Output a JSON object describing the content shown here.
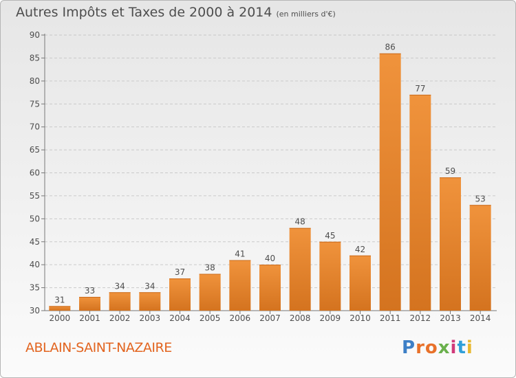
{
  "title": "Autres Impôts et Taxes de 2000 à 2014",
  "subtitle": "(en milliers d'€)",
  "commune": "ABLAIN-SAINT-NAZAIRE",
  "logo": {
    "letters": [
      "P",
      "r",
      "o",
      "x",
      "i",
      "t",
      "i"
    ],
    "colors": [
      "#3d7fc6",
      "#e8712a",
      "#e8712a",
      "#6ab04c",
      "#d03a7a",
      "#2f9fd8",
      "#e8b82e"
    ]
  },
  "colors": {
    "bar": "#f0933c",
    "bar_dark": "#d4731f",
    "text": "#4d4d4d",
    "commune": "#e2641f"
  },
  "chart_data": {
    "type": "bar",
    "categories": [
      "2000",
      "2001",
      "2002",
      "2003",
      "2004",
      "2005",
      "2006",
      "2007",
      "2008",
      "2009",
      "2010",
      "2011",
      "2012",
      "2013",
      "2014"
    ],
    "values": [
      31,
      33,
      34,
      34,
      37,
      38,
      41,
      40,
      48,
      45,
      42,
      86,
      77,
      59,
      53
    ],
    "data_labels": [
      "31",
      "33",
      "34",
      "34",
      "37",
      "38",
      "41",
      "40",
      "48",
      "45",
      "42",
      "86",
      "77",
      "59",
      "53"
    ],
    "ylim": [
      30,
      90
    ],
    "yticks": [
      30,
      35,
      40,
      45,
      50,
      55,
      60,
      65,
      70,
      75,
      80,
      85,
      90
    ],
    "ytick_labels": [
      "30",
      "35",
      "40",
      "45",
      "50",
      "55",
      "60",
      "65",
      "70",
      "75",
      "80",
      "85",
      "90"
    ],
    "grid": "horizontal dashed",
    "title": "Autres Impôts et Taxes de 2000 à 2014",
    "xlabel": "",
    "ylabel": ""
  }
}
